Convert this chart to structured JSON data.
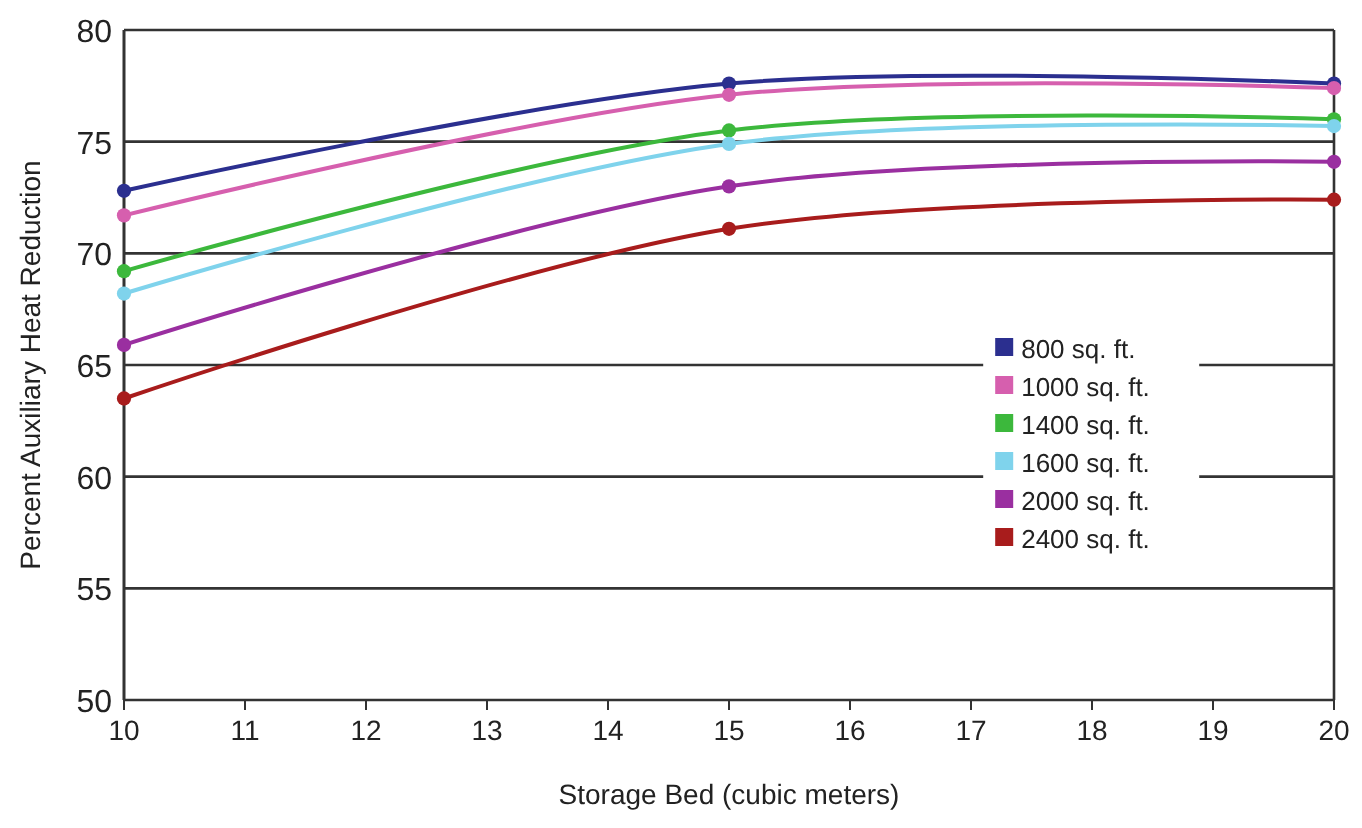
{
  "chart_data": {
    "type": "line",
    "xlabel": "Storage Bed (cubic meters)",
    "ylabel": "Percent Auxiliary Heat Reduction",
    "x": [
      10,
      15,
      20
    ],
    "xlim": [
      10,
      20
    ],
    "xticks": [
      10,
      11,
      12,
      13,
      14,
      15,
      16,
      17,
      18,
      19,
      20
    ],
    "ylim": [
      50,
      80
    ],
    "yticks": [
      50,
      55,
      60,
      65,
      70,
      75,
      80
    ],
    "grid": "y",
    "legend": "bottom right",
    "marker": "circle",
    "series": [
      {
        "name": "800 sq. ft.",
        "color": "#2b2f8f",
        "values": [
          72.8,
          77.6,
          77.6
        ]
      },
      {
        "name": "1000 sq. ft.",
        "color": "#d65fae",
        "values": [
          71.7,
          77.1,
          77.4
        ]
      },
      {
        "name": "1400 sq. ft.",
        "color": "#3cb83c",
        "values": [
          69.2,
          75.5,
          76.0
        ]
      },
      {
        "name": "1600 sq. ft.",
        "color": "#7fd3ec",
        "values": [
          68.2,
          74.9,
          75.7
        ]
      },
      {
        "name": "2000 sq. ft.",
        "color": "#9a2fa0",
        "values": [
          65.9,
          73.0,
          74.1
        ]
      },
      {
        "name": "2400 sq. ft.",
        "color": "#a81c1c",
        "values": [
          63.5,
          71.1,
          72.4
        ]
      }
    ]
  }
}
